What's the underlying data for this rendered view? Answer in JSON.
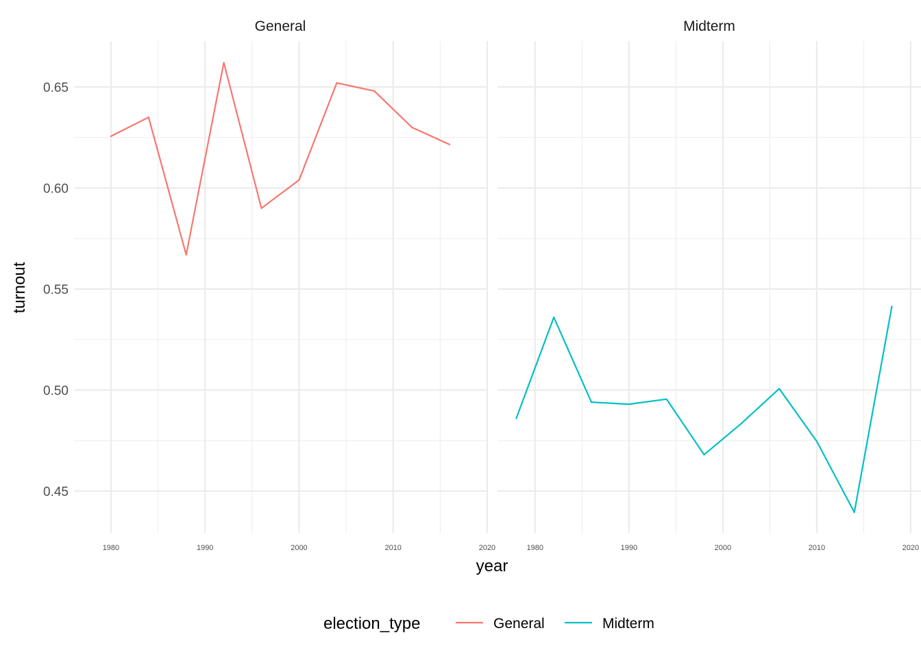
{
  "chart_data": {
    "type": "line",
    "title": "",
    "xlabel": "year",
    "ylabel": "turnout",
    "ylim": [
      0.4293,
      0.6727
    ],
    "yticks": [
      0.45,
      0.5,
      0.55,
      0.6,
      0.65
    ],
    "ytick_labels": [
      "0.45",
      "0.50",
      "0.55",
      "0.60",
      "0.65"
    ],
    "grid": true,
    "legend": {
      "title": "election_type",
      "position": "bottom",
      "entries": [
        "General",
        "Midterm"
      ]
    },
    "facets": [
      {
        "label": "General",
        "xlim": [
          1976.07,
          2019.93
        ],
        "xticks": [
          1980,
          1990,
          2000,
          2010,
          2020
        ],
        "xtick_labels": [
          "1980",
          "1990",
          "2000",
          "2010",
          "2020"
        ],
        "series": {
          "name": "General",
          "color": "#F8766D",
          "x": [
            1980,
            1984,
            1988,
            1992,
            1996,
            2000,
            2004,
            2008,
            2012,
            2016
          ],
          "y": [
            0.6256,
            0.635,
            0.567,
            0.662,
            0.59,
            0.604,
            0.652,
            0.648,
            0.63,
            0.6215
          ]
        }
      },
      {
        "label": "Midterm",
        "xlim": [
          1976.0,
          2021.1
        ],
        "xticks": [
          1980,
          1990,
          2000,
          2010,
          2020
        ],
        "xtick_labels": [
          "1980",
          "1990",
          "2000",
          "2010",
          "2020"
        ],
        "series": {
          "name": "Midterm",
          "color": "#00BFC4",
          "x": [
            1978,
            1982,
            1986,
            1990,
            1994,
            1998,
            2002,
            2006,
            2010,
            2014,
            2018
          ],
          "y": [
            0.486,
            0.536,
            0.494,
            0.493,
            0.4955,
            0.468,
            0.4836,
            0.5007,
            0.4746,
            0.4395,
            0.5414
          ]
        }
      }
    ]
  }
}
